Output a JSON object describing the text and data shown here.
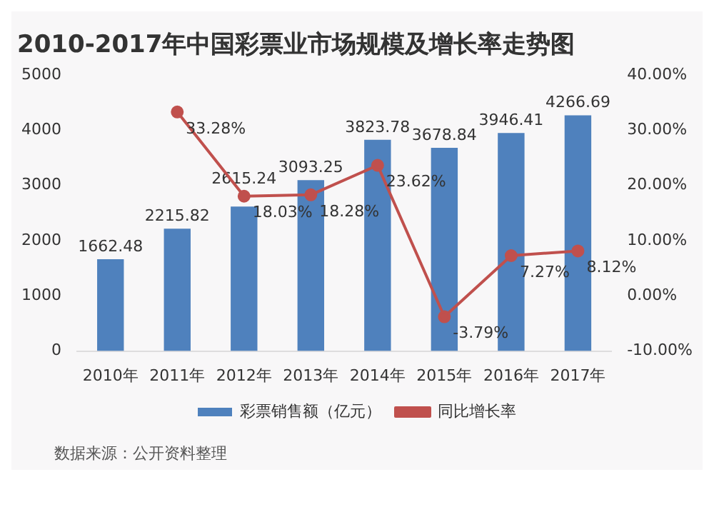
{
  "chart_data": {
    "type": "bar",
    "title": "2010-2017年中国彩票业市场规模及增长率走势图",
    "categories": [
      "2010年",
      "2011年",
      "2012年",
      "2013年",
      "2014年",
      "2015年",
      "2016年",
      "2017年"
    ],
    "series": [
      {
        "name": "彩票销售额（亿元）",
        "color": "#4f81bd",
        "values": [
          1662.48,
          2215.82,
          2615.24,
          3093.25,
          3823.78,
          3678.84,
          3946.41,
          4266.69
        ],
        "value_labels": [
          "1662.48",
          "2215.82",
          "2615.24",
          "3093.25",
          "3823.78",
          "3678.84",
          "3946.41",
          "4266.69"
        ]
      },
      {
        "name": "同比增长率",
        "type": "line",
        "axis": "y2",
        "color": "#c0504d",
        "values": [
          null,
          33.28,
          18.03,
          18.28,
          23.62,
          -3.79,
          7.27,
          8.12
        ],
        "value_labels": [
          null,
          "33.28%",
          "18.03%",
          "18.28%",
          "23.62%",
          "-3.79%",
          "7.27%",
          "8.12%"
        ]
      }
    ],
    "ylim": [
      0,
      5000
    ],
    "yticks": [
      0,
      1000,
      2000,
      3000,
      4000,
      5000
    ],
    "y2lim": [
      -10,
      40
    ],
    "y2ticks": [
      {
        "value": -10,
        "label": "-10.00%"
      },
      {
        "value": 0,
        "label": "0.00%"
      },
      {
        "value": 10,
        "label": "10.00%"
      },
      {
        "value": 20,
        "label": "20.00%"
      },
      {
        "value": 30,
        "label": "30.00%"
      },
      {
        "value": 40,
        "label": "40.00%"
      }
    ],
    "legend": "bottom",
    "marker": "circle",
    "line_style": "solid",
    "annotations": [
      "数据来源：公开资料整理"
    ]
  }
}
